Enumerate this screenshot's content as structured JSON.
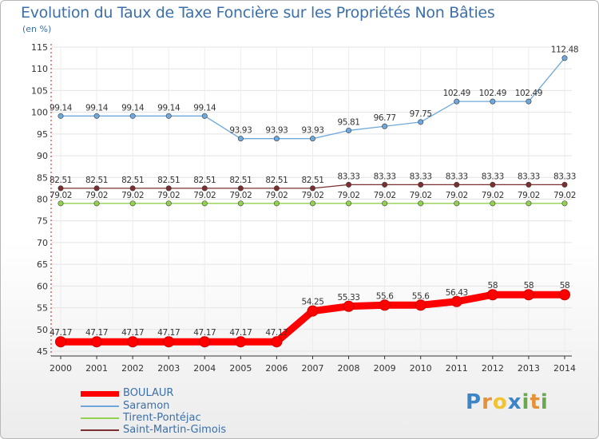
{
  "chart_data": {
    "type": "line",
    "title": "Evolution du Taux de Taxe Foncière sur les Propriétés Non Bâties",
    "ylabel": "(en %)",
    "xlabel": "",
    "ylim": [
      45,
      115
    ],
    "yticks": [
      "45",
      "50",
      "55",
      "60",
      "65",
      "70",
      "75",
      "80",
      "85",
      "90",
      "95",
      "100",
      "105",
      "110",
      "115"
    ],
    "categories": [
      "2000",
      "2001",
      "2002",
      "2003",
      "2004",
      "2005",
      "2006",
      "2007",
      "2008",
      "2009",
      "2010",
      "2011",
      "2012",
      "2013",
      "2014"
    ],
    "series": [
      {
        "name": "BOULAUR",
        "color": "#ff0000",
        "values": [
          47.17,
          47.17,
          47.17,
          47.17,
          47.17,
          47.17,
          47.17,
          54.25,
          55.33,
          55.6,
          55.6,
          56.43,
          58,
          58,
          58
        ],
        "labels": [
          "47.17",
          "47.17",
          "47.17",
          "47.17",
          "47.17",
          "47.17",
          "47.17",
          "54.25",
          "55.33",
          "55.6",
          "55.6",
          "56.43",
          "58",
          "58",
          "58"
        ]
      },
      {
        "name": "Saramon",
        "color": "#6fa8dc",
        "values": [
          99.14,
          99.14,
          99.14,
          99.14,
          99.14,
          93.93,
          93.93,
          93.93,
          95.81,
          96.77,
          97.75,
          102.49,
          102.49,
          102.49,
          112.48
        ],
        "labels": [
          "99.14",
          "99.14",
          "99.14",
          "99.14",
          "99.14",
          "93.93",
          "93.93",
          "93.93",
          "95.81",
          "96.77",
          "97.75",
          "102.49",
          "102.49",
          "102.49",
          "112.48"
        ]
      },
      {
        "name": "Tirent-Pontéjac",
        "color": "#92d050",
        "values": [
          79.02,
          79.02,
          79.02,
          79.02,
          79.02,
          79.02,
          79.02,
          79.02,
          79.02,
          79.02,
          79.02,
          79.02,
          79.02,
          79.02,
          79.02
        ],
        "labels": [
          "79.02",
          "79.02",
          "79.02",
          "79.02",
          "79.02",
          "79.02",
          "79.02",
          "79.02",
          "79.02",
          "79.02",
          "79.02",
          "79.02",
          "79.02",
          "79.02",
          "79.02"
        ]
      },
      {
        "name": "Saint-Martin-Gimois",
        "color": "#7a3030",
        "values": [
          82.51,
          82.51,
          82.51,
          82.51,
          82.51,
          82.51,
          82.51,
          82.51,
          83.33,
          83.33,
          83.33,
          83.33,
          83.33,
          83.33,
          83.33
        ],
        "labels": [
          "82.51",
          "82.51",
          "82.51",
          "82.51",
          "82.51",
          "82.51",
          "82.51",
          "82.51",
          "83.33",
          "83.33",
          "83.33",
          "83.33",
          "83.33",
          "83.33",
          "83.33"
        ]
      }
    ]
  },
  "logo": {
    "letters": [
      "P",
      "r",
      "o",
      "x",
      "i",
      "t",
      "i"
    ],
    "colors": [
      "#3d85c6",
      "#e69138",
      "#f1c232",
      "#3d85c6",
      "#6aa84f",
      "#e69138",
      "#6aa84f"
    ]
  }
}
